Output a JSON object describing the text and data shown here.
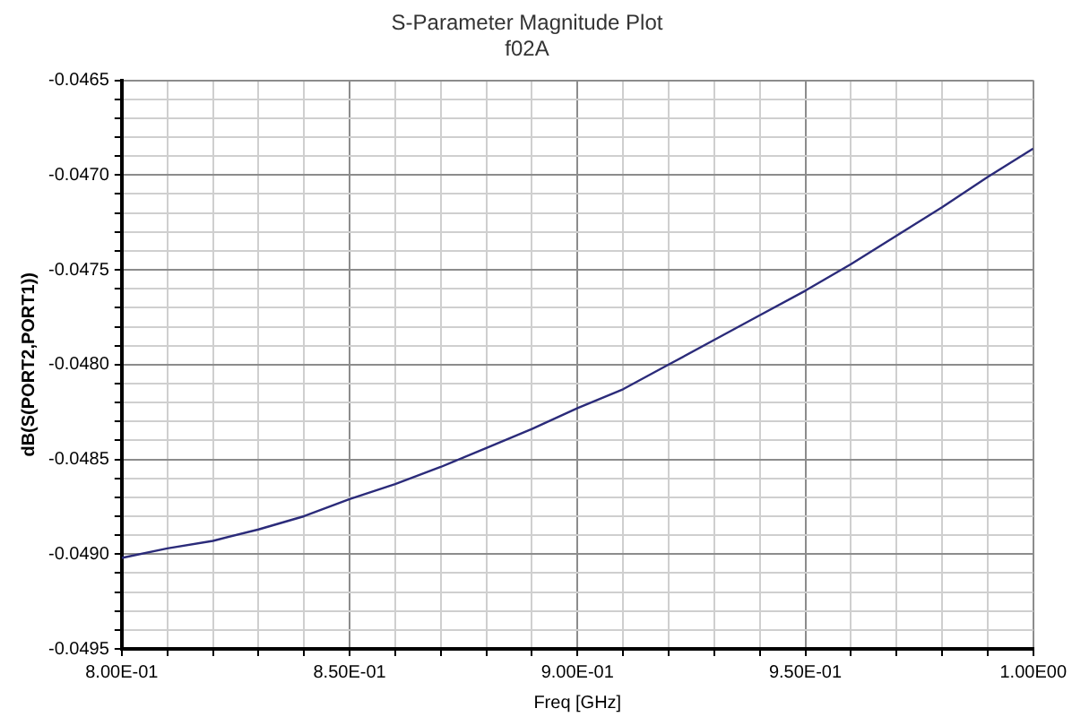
{
  "chart_data": {
    "type": "line",
    "title": "S-Parameter Magnitude Plot",
    "subtitle": "f02A",
    "xlabel": "Freq [GHz]",
    "ylabel": "dB(S(PORT2,PORT1))",
    "x": [
      0.8,
      0.81,
      0.82,
      0.83,
      0.84,
      0.85,
      0.86,
      0.87,
      0.88,
      0.89,
      0.9,
      0.91,
      0.92,
      0.93,
      0.94,
      0.95,
      0.96,
      0.97,
      0.98,
      0.99,
      1.0
    ],
    "series": [
      {
        "color": "#2b2b7a",
        "values": [
          -0.04902,
          -0.04897,
          -0.04893,
          -0.04887,
          -0.0488,
          -0.04871,
          -0.04863,
          -0.04854,
          -0.04844,
          -0.04834,
          -0.04823,
          -0.04813,
          -0.048,
          -0.04787,
          -0.04774,
          -0.04761,
          -0.04747,
          -0.04732,
          -0.04717,
          -0.04701,
          -0.04686
        ]
      }
    ],
    "xlim": [
      0.8,
      1.0
    ],
    "xticks": [
      {
        "value": 0.8,
        "label": "8.00E-01"
      },
      {
        "value": 0.81,
        "label": null
      },
      {
        "value": 0.82,
        "label": null
      },
      {
        "value": 0.83,
        "label": null
      },
      {
        "value": 0.84,
        "label": null
      },
      {
        "value": 0.85,
        "label": "8.50E-01"
      },
      {
        "value": 0.86,
        "label": null
      },
      {
        "value": 0.87,
        "label": null
      },
      {
        "value": 0.88,
        "label": null
      },
      {
        "value": 0.89,
        "label": null
      },
      {
        "value": 0.9,
        "label": "9.00E-01"
      },
      {
        "value": 0.91,
        "label": null
      },
      {
        "value": 0.92,
        "label": null
      },
      {
        "value": 0.93,
        "label": null
      },
      {
        "value": 0.94,
        "label": null
      },
      {
        "value": 0.95,
        "label": "9.50E-01"
      },
      {
        "value": 0.96,
        "label": null
      },
      {
        "value": 0.97,
        "label": null
      },
      {
        "value": 0.98,
        "label": null
      },
      {
        "value": 0.99,
        "label": null
      },
      {
        "value": 1.0,
        "label": "1.00E00"
      }
    ],
    "ylim": [
      -0.0495,
      -0.0465
    ],
    "yticks": [
      {
        "value": -0.0495,
        "label": "-0.0495"
      },
      {
        "value": -0.0494,
        "label": null
      },
      {
        "value": -0.0493,
        "label": null
      },
      {
        "value": -0.0492,
        "label": null
      },
      {
        "value": -0.0491,
        "label": null
      },
      {
        "value": -0.049,
        "label": "-0.0490"
      },
      {
        "value": -0.0489,
        "label": null
      },
      {
        "value": -0.0488,
        "label": null
      },
      {
        "value": -0.0487,
        "label": null
      },
      {
        "value": -0.0486,
        "label": null
      },
      {
        "value": -0.0485,
        "label": "-0.0485"
      },
      {
        "value": -0.0484,
        "label": null
      },
      {
        "value": -0.0483,
        "label": null
      },
      {
        "value": -0.0482,
        "label": null
      },
      {
        "value": -0.0481,
        "label": null
      },
      {
        "value": -0.048,
        "label": "-0.0480"
      },
      {
        "value": -0.0479,
        "label": null
      },
      {
        "value": -0.0478,
        "label": null
      },
      {
        "value": -0.0477,
        "label": null
      },
      {
        "value": -0.0476,
        "label": null
      },
      {
        "value": -0.0475,
        "label": "-0.0475"
      },
      {
        "value": -0.0474,
        "label": null
      },
      {
        "value": -0.0473,
        "label": null
      },
      {
        "value": -0.0472,
        "label": null
      },
      {
        "value": -0.0471,
        "label": null
      },
      {
        "value": -0.047,
        "label": "-0.0470"
      },
      {
        "value": -0.0469,
        "label": null
      },
      {
        "value": -0.0468,
        "label": null
      },
      {
        "value": -0.0467,
        "label": null
      },
      {
        "value": -0.0466,
        "label": null
      },
      {
        "value": -0.0465,
        "label": "-0.0465"
      }
    ],
    "grid": true,
    "legend": false,
    "marker": "none",
    "line_style": "solid"
  }
}
